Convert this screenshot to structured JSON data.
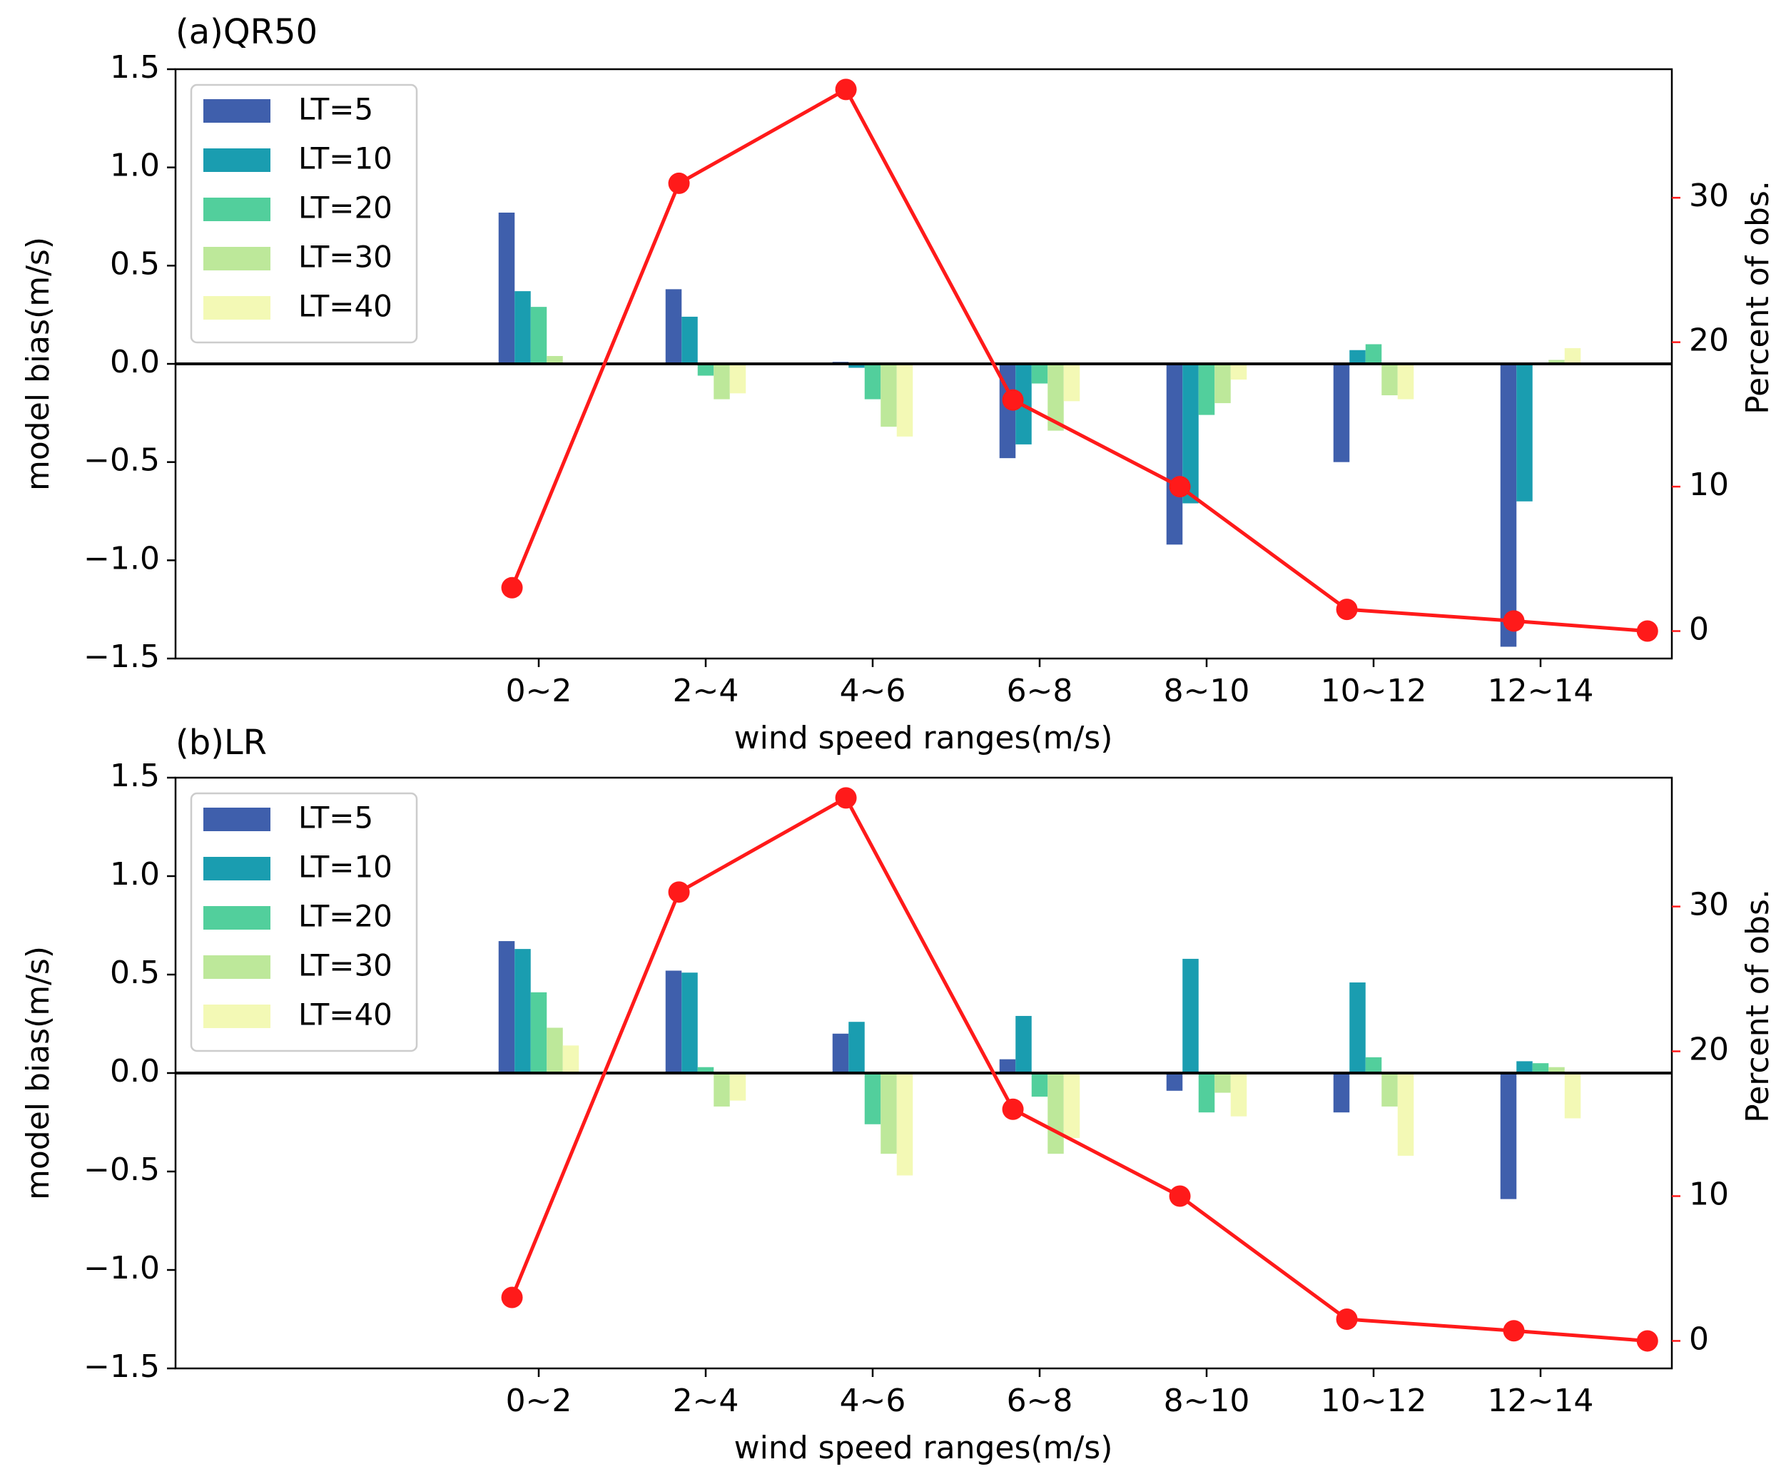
{
  "chart_data": [
    {
      "type": "bar",
      "title": "(a)QR50",
      "xlabel": "wind speed ranges(m/s)",
      "ylabel": "model bias(m/s)",
      "y2label": "Percent of obs.",
      "ylim": [
        -1.5,
        1.5
      ],
      "y2lim": [
        -1.9,
        38.9
      ],
      "yticks": [
        "1.5",
        "1.0",
        "0.5",
        "0.0",
        "−0.5",
        "−1.0",
        "−1.5"
      ],
      "y2ticks": [
        "0",
        "10",
        "20",
        "30"
      ],
      "categories": [
        "0~2",
        "2~4",
        "4~6",
        "6~8",
        "8~10",
        "10~12",
        "12~14"
      ],
      "legend_position": "top-left",
      "series": [
        {
          "name": "LT=5",
          "color": "#3f5fac",
          "values": [
            0.77,
            0.38,
            0.01,
            -0.48,
            -0.92,
            -0.5,
            -1.44
          ]
        },
        {
          "name": "LT=10",
          "color": "#1a9db0",
          "values": [
            0.37,
            0.24,
            -0.02,
            -0.41,
            -0.71,
            0.07,
            -0.7
          ]
        },
        {
          "name": "LT=20",
          "color": "#52cf9c",
          "values": [
            0.29,
            -0.06,
            -0.18,
            -0.1,
            -0.26,
            0.1,
            0.0
          ]
        },
        {
          "name": "LT=30",
          "color": "#bde89a",
          "values": [
            0.04,
            -0.18,
            -0.32,
            -0.34,
            -0.2,
            -0.16,
            0.02
          ]
        },
        {
          "name": "LT=40",
          "color": "#f3f9b5",
          "values": [
            0.0,
            -0.15,
            -0.37,
            -0.19,
            -0.08,
            -0.18,
            0.08
          ]
        }
      ],
      "line_series": {
        "name": "Percent of obs.",
        "color": "#ff1a1a",
        "x": [
          -0.16,
          0.84,
          1.84,
          2.84,
          3.84,
          4.84,
          5.84,
          6.64
        ],
        "values": [
          3.0,
          31.0,
          37.5,
          16.0,
          10.0,
          1.5,
          0.7,
          0.0
        ]
      }
    },
    {
      "type": "bar",
      "title": "(b)LR",
      "xlabel": "wind speed ranges(m/s)",
      "ylabel": "model bias(m/s)",
      "y2label": "Percent of obs.",
      "ylim": [
        -1.5,
        1.5
      ],
      "y2lim": [
        -1.9,
        38.9
      ],
      "yticks": [
        "1.5",
        "1.0",
        "0.5",
        "0.0",
        "−0.5",
        "−1.0",
        "−1.5"
      ],
      "y2ticks": [
        "0",
        "10",
        "20",
        "30"
      ],
      "categories": [
        "0~2",
        "2~4",
        "4~6",
        "6~8",
        "8~10",
        "10~12",
        "12~14"
      ],
      "legend_position": "top-left",
      "series": [
        {
          "name": "LT=5",
          "color": "#3f5fac",
          "values": [
            0.67,
            0.52,
            0.2,
            0.07,
            -0.09,
            -0.2,
            -0.64
          ]
        },
        {
          "name": "LT=10",
          "color": "#1a9db0",
          "values": [
            0.63,
            0.51,
            0.26,
            0.29,
            0.58,
            0.46,
            0.06
          ]
        },
        {
          "name": "LT=20",
          "color": "#52cf9c",
          "values": [
            0.41,
            0.03,
            -0.26,
            -0.12,
            -0.2,
            0.08,
            0.05
          ]
        },
        {
          "name": "LT=30",
          "color": "#bde89a",
          "values": [
            0.23,
            -0.17,
            -0.41,
            -0.41,
            -0.1,
            -0.17,
            0.03
          ]
        },
        {
          "name": "LT=40",
          "color": "#f3f9b5",
          "values": [
            0.14,
            -0.14,
            -0.52,
            -0.33,
            -0.22,
            -0.42,
            -0.23
          ]
        }
      ],
      "line_series": {
        "name": "Percent of obs.",
        "color": "#ff1a1a",
        "x": [
          -0.16,
          0.84,
          1.84,
          2.84,
          3.84,
          4.84,
          5.84,
          6.64
        ],
        "values": [
          3.0,
          31.0,
          37.5,
          16.0,
          10.0,
          1.5,
          0.7,
          0.0
        ]
      }
    }
  ]
}
